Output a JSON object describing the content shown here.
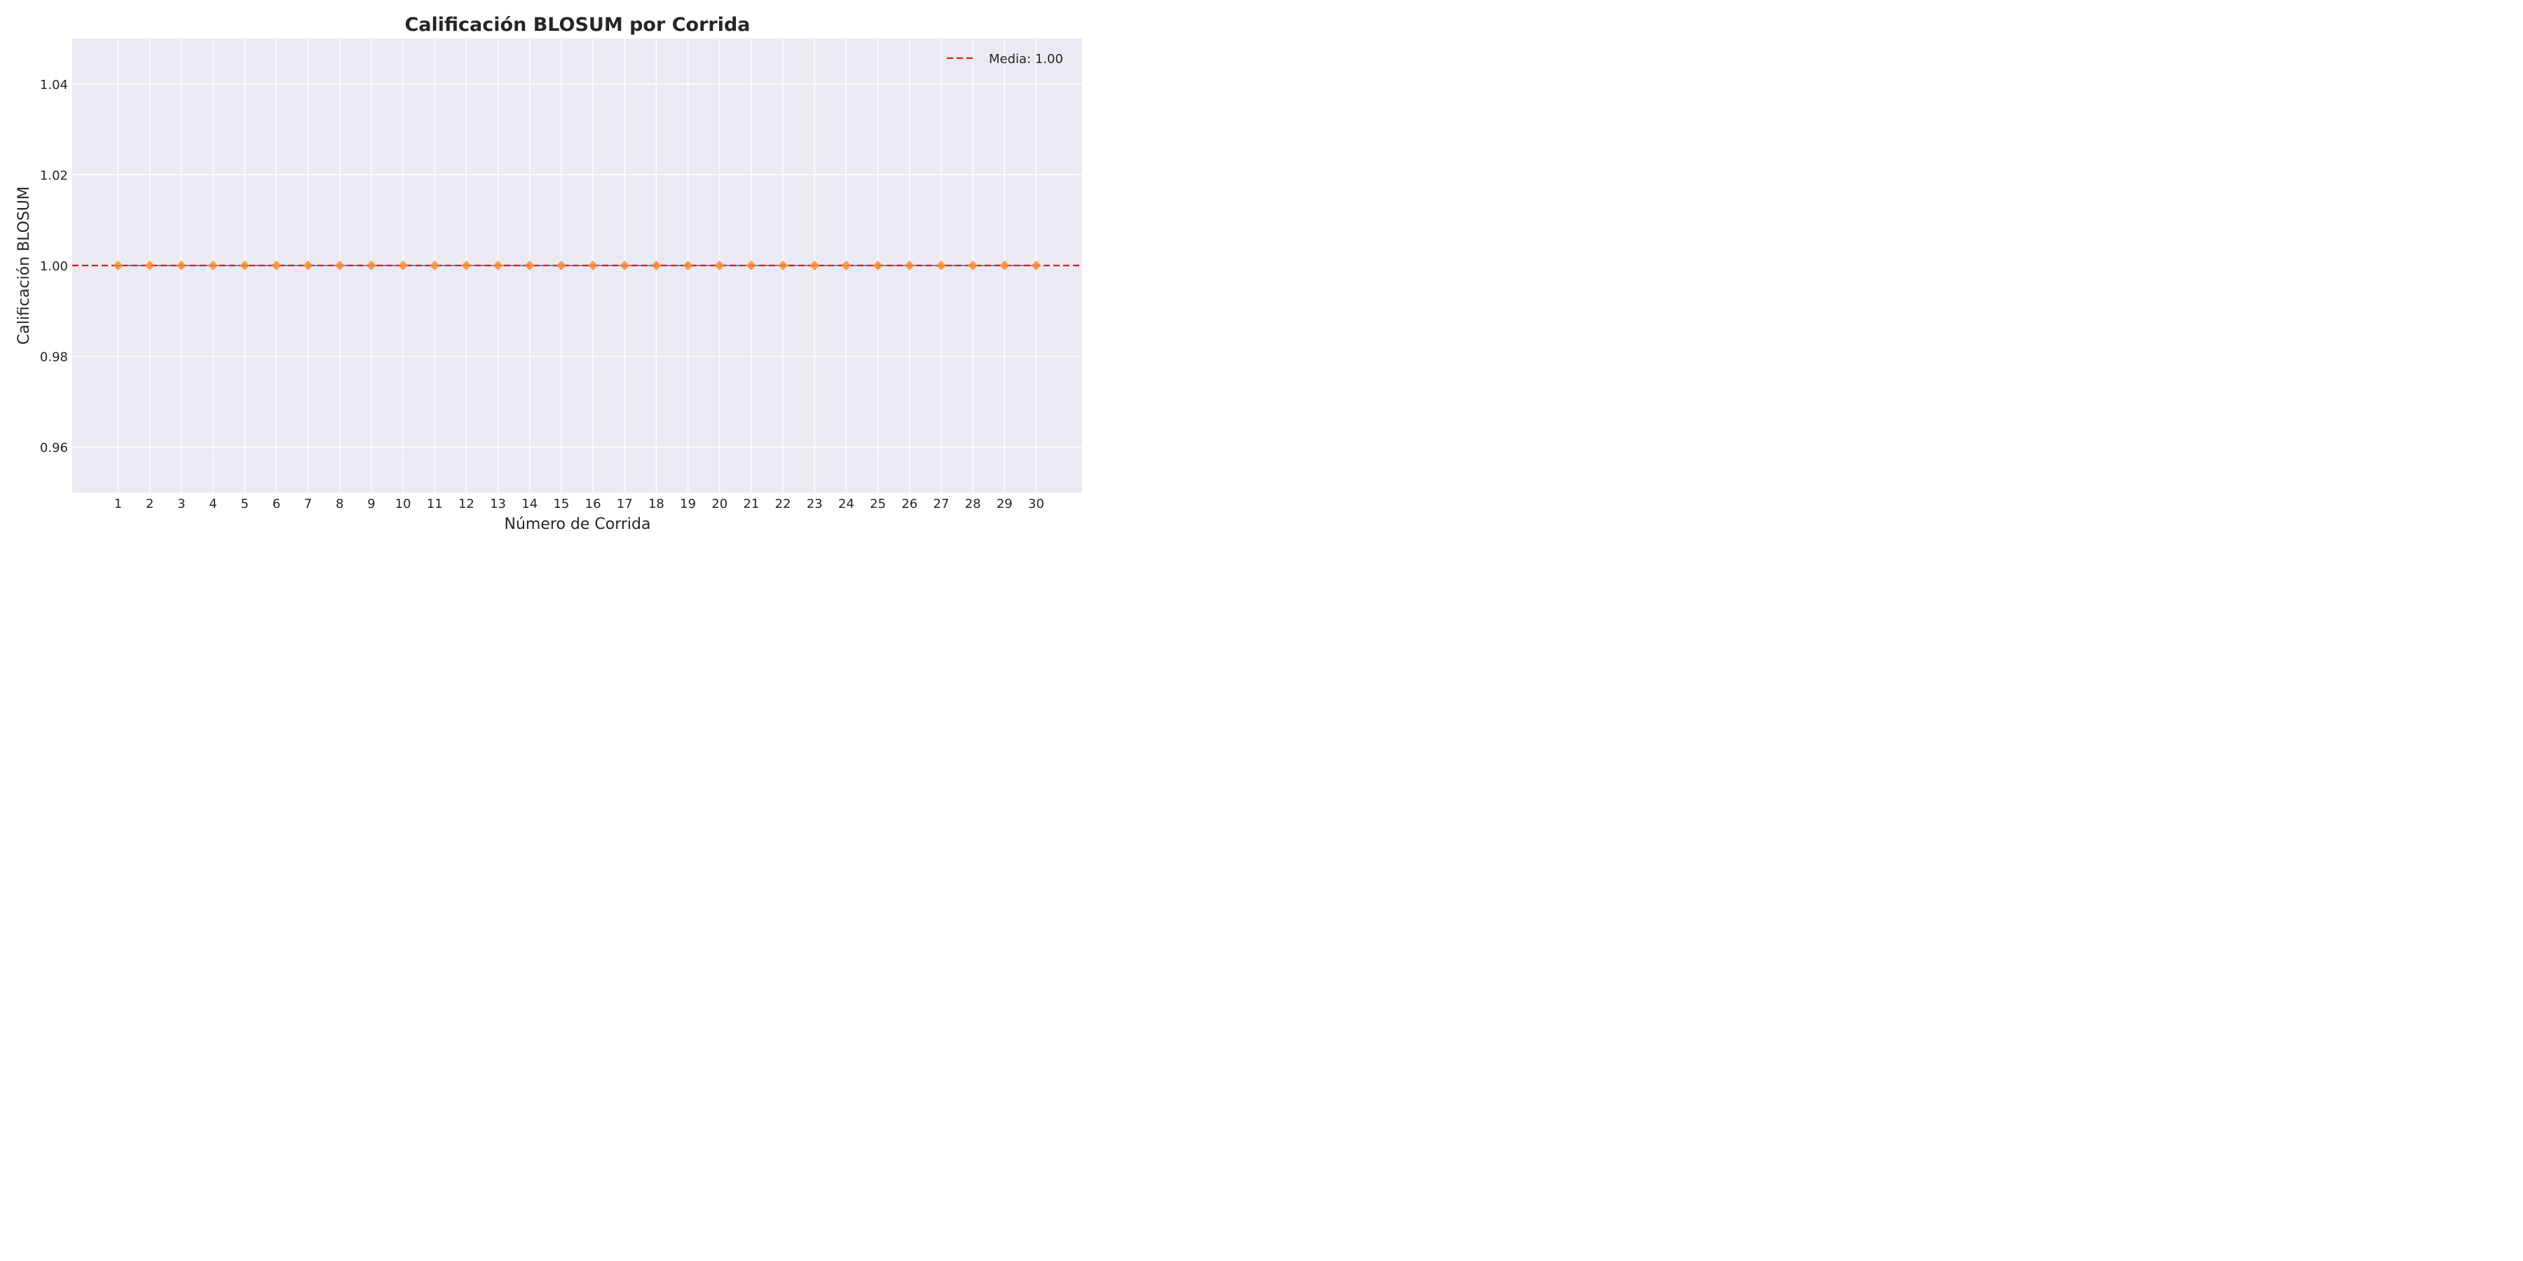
{
  "chart_data": {
    "type": "scatter",
    "title": "Calificación BLOSUM por Corrida",
    "xlabel": "Número de Corrida",
    "ylabel": "Calificación BLOSUM",
    "x": [
      1,
      2,
      3,
      4,
      5,
      6,
      7,
      8,
      9,
      10,
      11,
      12,
      13,
      14,
      15,
      16,
      17,
      18,
      19,
      20,
      21,
      22,
      23,
      24,
      25,
      26,
      27,
      28,
      29,
      30
    ],
    "series": [
      {
        "values": [
          1,
          1,
          1,
          1,
          1,
          1,
          1,
          1,
          1,
          1,
          1,
          1,
          1,
          1,
          1,
          1,
          1,
          1,
          1,
          1,
          1,
          1,
          1,
          1,
          1,
          1,
          1,
          1,
          1,
          1
        ],
        "color": "#ff8c33",
        "line_color": "#3a9bd9",
        "marker": "diamond"
      }
    ],
    "mean_line": {
      "value": 1.0,
      "label": "Media: 1.00",
      "color": "#e31a1c",
      "style": "dashed"
    },
    "xticks": [
      "1",
      "2",
      "3",
      "4",
      "5",
      "6",
      "7",
      "8",
      "9",
      "10",
      "11",
      "12",
      "13",
      "14",
      "15",
      "16",
      "17",
      "18",
      "19",
      "20",
      "21",
      "22",
      "23",
      "24",
      "25",
      "26",
      "27",
      "28",
      "29",
      "30"
    ],
    "yticks": [
      0.96,
      0.98,
      1.0,
      1.02,
      1.04
    ],
    "ytick_labels": [
      "0.96",
      "0.98",
      "1.00",
      "1.02",
      "1.04"
    ],
    "xlim": [
      -0.45,
      31.45
    ],
    "ylim": [
      0.95,
      1.05
    ],
    "grid": true,
    "legend_position": "top-right",
    "background": "#eaeaf2"
  }
}
